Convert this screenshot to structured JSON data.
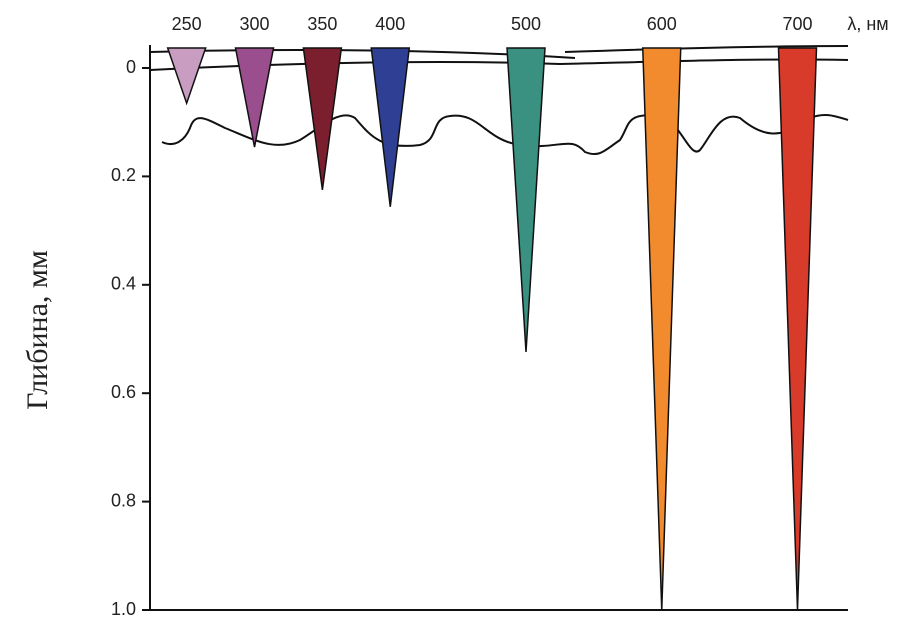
{
  "chart_data": {
    "type": "wedge",
    "y_label": "Глибина, мм",
    "x_label": "λ, нм",
    "x": [
      250,
      300,
      350,
      400,
      500,
      600,
      700
    ],
    "values": [
      0.065,
      0.146,
      0.225,
      0.256,
      0.524,
      1.0,
      1.0
    ],
    "colors": [
      "#c99cc2",
      "#9a4e8e",
      "#7b1f2f",
      "#2f3f94",
      "#3b9181",
      "#f18b2d",
      "#d93b2b"
    ],
    "xlim": [
      223,
      735
    ],
    "ylim": [
      0,
      1
    ],
    "yticks": [
      0,
      0.2,
      0.4,
      0.6,
      0.8,
      {
        "value": 1,
        "label": "1.0"
      }
    ]
  }
}
